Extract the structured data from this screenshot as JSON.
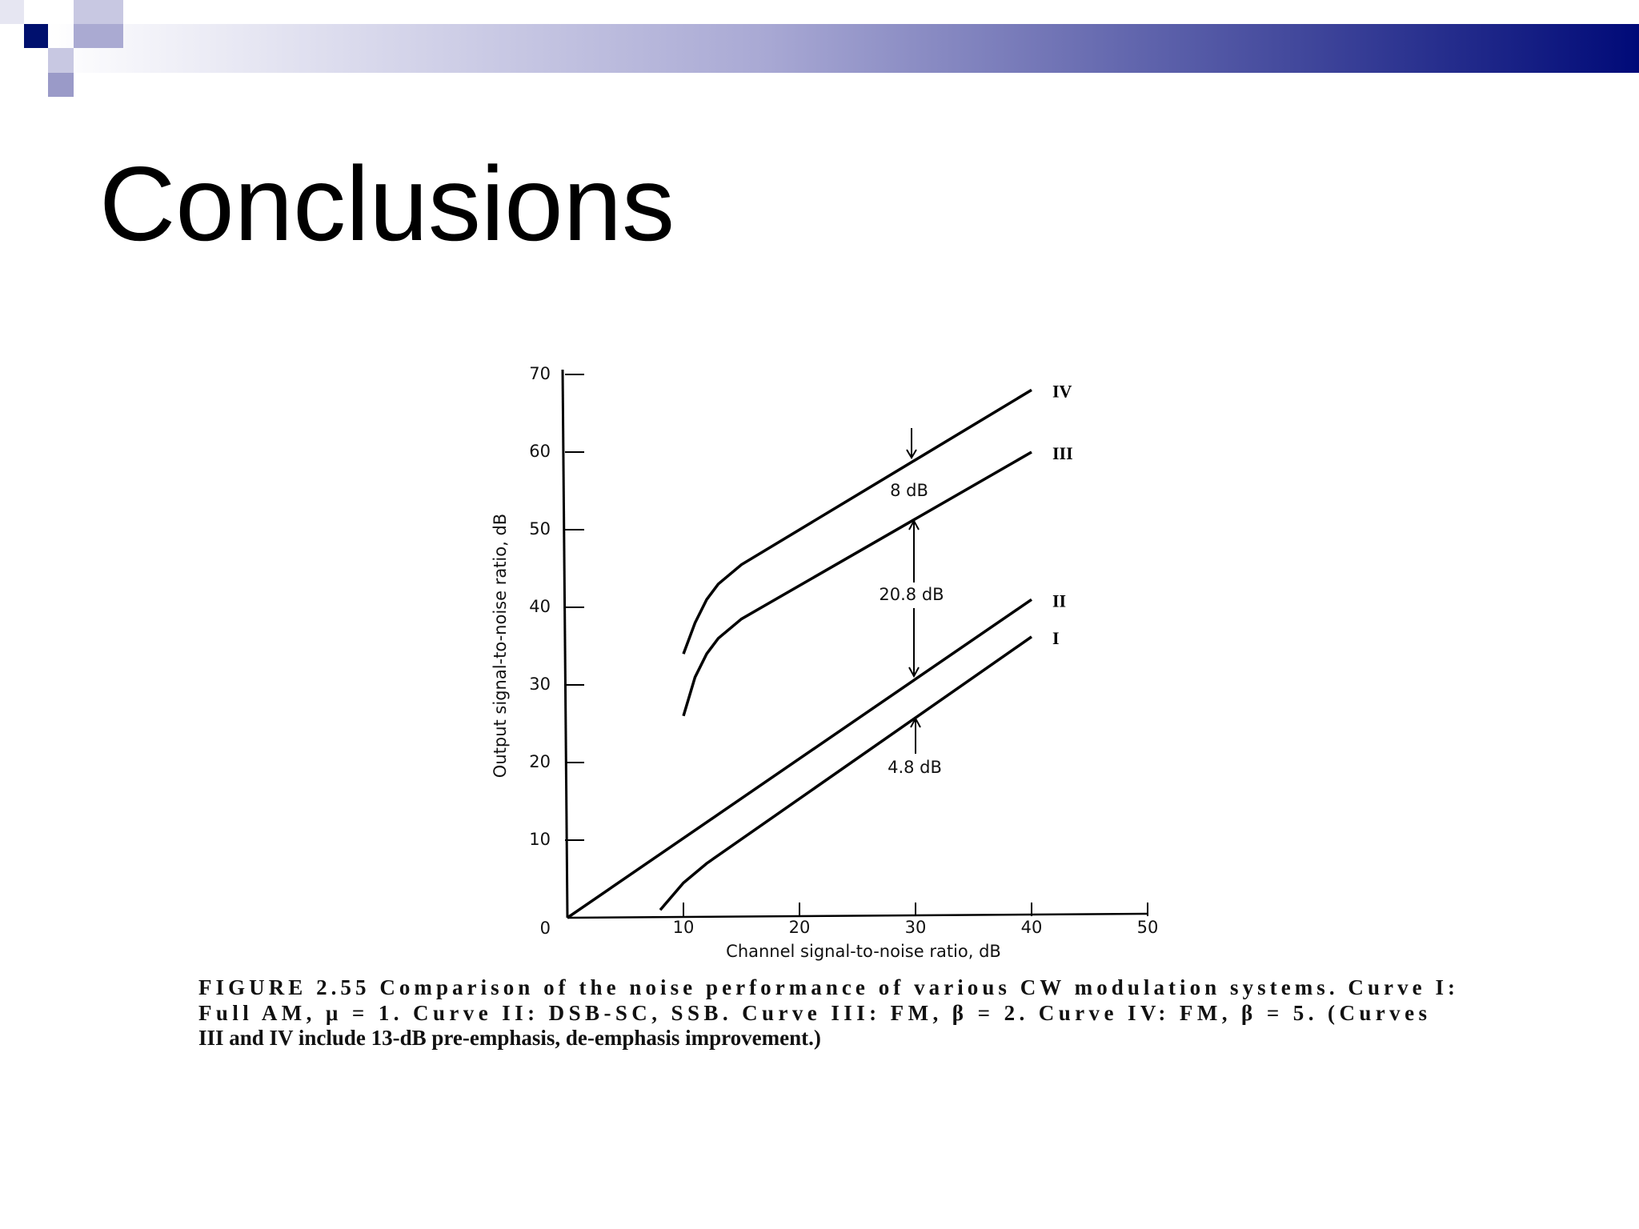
{
  "slide": {
    "title": "Conclusions"
  },
  "chart_data": {
    "type": "line",
    "xlabel": "Channel signal-to-noise ratio, dB",
    "ylabel": "Output signal-to-noise ratio, dB",
    "xlim": [
      0,
      50
    ],
    "ylim": [
      0,
      70
    ],
    "xticks": [
      10,
      20,
      30,
      40,
      50
    ],
    "yticks": [
      0,
      10,
      20,
      30,
      40,
      50,
      60,
      70
    ],
    "series": [
      {
        "name": "I",
        "color": "#000000",
        "x": [
          8,
          10,
          12,
          40
        ],
        "values": [
          1,
          4.5,
          7,
          36.2
        ]
      },
      {
        "name": "II",
        "color": "#000000",
        "x": [
          0,
          40
        ],
        "values": [
          0,
          41
        ]
      },
      {
        "name": "III",
        "color": "#000000",
        "x": [
          10,
          11,
          12,
          13,
          15,
          40
        ],
        "values": [
          26,
          31,
          34,
          36,
          38.5,
          60
        ]
      },
      {
        "name": "IV",
        "color": "#000000",
        "x": [
          10,
          11,
          12,
          13,
          15,
          40
        ],
        "values": [
          34,
          38,
          41,
          43,
          45.5,
          68
        ]
      }
    ],
    "annotations": [
      "8 dB",
      "20.8 dB",
      "4.8 dB"
    ]
  },
  "caption": [
    "FIGURE 2.55   Comparison of the noise performance of various CW modulation systems. Curve I:",
    "Full AM, μ = 1. Curve II: DSB-SC, SSB. Curve III: FM, β = 2. Curve IV: FM, β = 5. (Curves",
    "III and IV include 13-dB pre-emphasis, de-emphasis improvement.)"
  ]
}
